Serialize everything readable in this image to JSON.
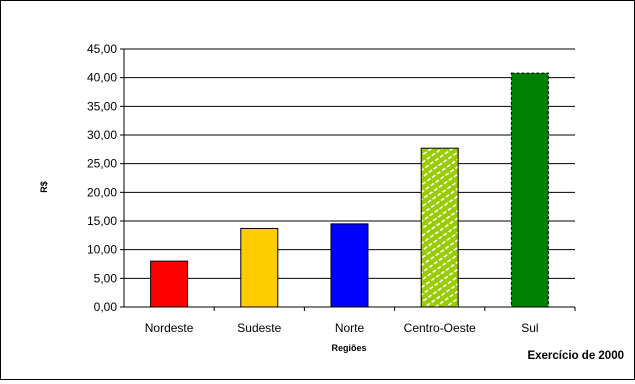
{
  "chart_data": {
    "type": "bar",
    "title": "",
    "xlabel": "Regiões",
    "ylabel": "R$",
    "categories": [
      "Nordeste",
      "Sudeste",
      "Norte",
      "Centro-Oeste",
      "Sul"
    ],
    "values": [
      8.0,
      13.7,
      14.5,
      27.7,
      40.8
    ],
    "bar_colors": [
      "#ff0000",
      "#ffcc00",
      "#0000ff",
      "#99cc00",
      "#008000"
    ],
    "ylim": [
      0,
      45
    ],
    "yticks": [
      "0,00",
      "5,00",
      "10,00",
      "15,00",
      "20,00",
      "25,00",
      "30,00",
      "35,00",
      "40,00",
      "45,00"
    ],
    "grid": true,
    "legend": "none",
    "annotation": "Exercício de 2000"
  }
}
